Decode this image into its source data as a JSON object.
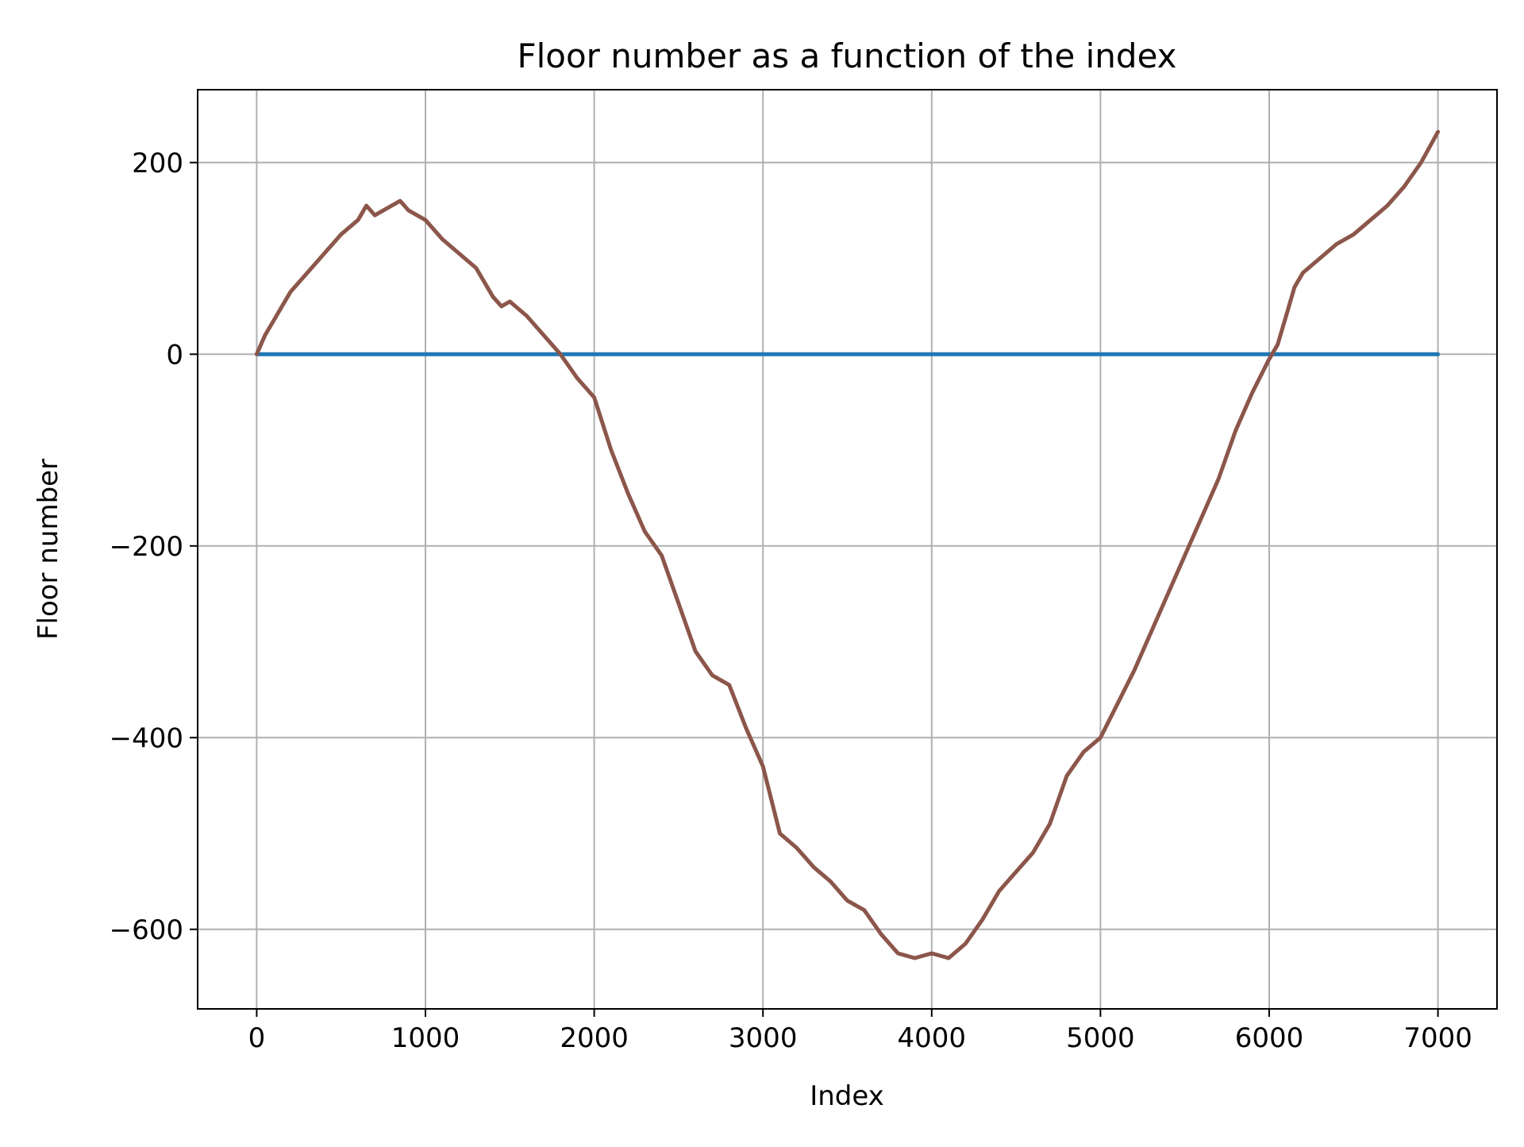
{
  "chart_data": {
    "type": "line",
    "title": "Floor number as a function of the index",
    "xlabel": "Index",
    "ylabel": "Floor number",
    "xlim": [
      -350,
      7350
    ],
    "ylim": [
      -683,
      276
    ],
    "xticks": [
      0,
      1000,
      2000,
      3000,
      4000,
      5000,
      6000,
      7000
    ],
    "yticks": [
      200,
      0,
      -200,
      -400,
      -600
    ],
    "xtick_labels": [
      "0",
      "1000",
      "2000",
      "3000",
      "4000",
      "5000",
      "6000",
      "7000"
    ],
    "ytick_labels": [
      "200",
      "0",
      "−200",
      "−400",
      "−600"
    ],
    "grid": true,
    "legend": "none",
    "series": [
      {
        "color": "#1f77b4",
        "x": [
          0,
          7000
        ],
        "y": [
          0,
          0
        ]
      },
      {
        "color": "#8c564b",
        "x": [
          0,
          50,
          100,
          150,
          200,
          300,
          400,
          500,
          600,
          650,
          700,
          800,
          850,
          900,
          1000,
          1100,
          1200,
          1300,
          1400,
          1450,
          1500,
          1600,
          1700,
          1800,
          1900,
          2000,
          2100,
          2200,
          2300,
          2400,
          2500,
          2600,
          2700,
          2800,
          2900,
          3000,
          3100,
          3200,
          3300,
          3400,
          3500,
          3600,
          3700,
          3800,
          3900,
          4000,
          4100,
          4200,
          4300,
          4400,
          4500,
          4600,
          4700,
          4800,
          4900,
          5000,
          5100,
          5200,
          5300,
          5400,
          5500,
          5600,
          5700,
          5800,
          5900,
          6000,
          6050,
          6100,
          6150,
          6200,
          6300,
          6400,
          6500,
          6600,
          6700,
          6800,
          6900,
          7000
        ],
        "y": [
          0,
          20,
          35,
          50,
          65,
          85,
          105,
          125,
          140,
          155,
          145,
          155,
          160,
          150,
          140,
          120,
          105,
          90,
          60,
          50,
          55,
          40,
          20,
          0,
          -25,
          -45,
          -100,
          -145,
          -185,
          -210,
          -260,
          -310,
          -335,
          -345,
          -390,
          -430,
          -500,
          -515,
          -535,
          -550,
          -570,
          -580,
          -605,
          -625,
          -630,
          -625,
          -630,
          -615,
          -590,
          -560,
          -540,
          -520,
          -490,
          -440,
          -415,
          -400,
          -365,
          -330,
          -290,
          -250,
          -210,
          -170,
          -130,
          -80,
          -40,
          -5,
          10,
          40,
          70,
          85,
          100,
          115,
          125,
          140,
          155,
          175,
          200,
          232
        ]
      }
    ]
  }
}
